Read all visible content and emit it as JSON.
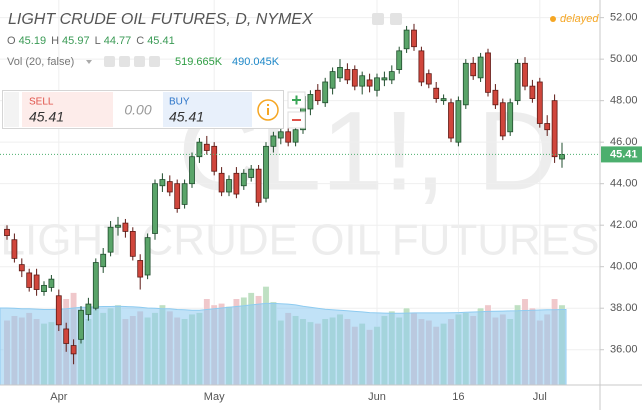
{
  "header": {
    "title": "LIGHT CRUDE OIL FUTURES, D, NYMEX",
    "status": "delayed",
    "ohlc_labels": [
      "O",
      "H",
      "L",
      "C"
    ],
    "volume_label": "Vol (20, false)"
  },
  "trade": {
    "sell_label": "SELL",
    "spread": "0.00",
    "buy_label": "BUY"
  },
  "chart_data": {
    "type": "candlestick",
    "watermark": [
      "CL1!, D",
      "LIGHT CRUDE OIL FUTURES"
    ],
    "categories": [
      null,
      null,
      null,
      null,
      null,
      null,
      null,
      "Apr",
      null,
      null,
      null,
      null,
      null,
      null,
      null,
      null,
      null,
      null,
      null,
      null,
      null,
      null,
      null,
      null,
      null,
      null,
      null,
      null,
      "May",
      null,
      null,
      null,
      null,
      null,
      null,
      null,
      null,
      null,
      null,
      null,
      null,
      null,
      null,
      null,
      null,
      null,
      null,
      null,
      null,
      null,
      "Jun",
      null,
      null,
      null,
      null,
      null,
      null,
      null,
      null,
      null,
      null,
      "16",
      null,
      null,
      null,
      null,
      null,
      null,
      null,
      null,
      null,
      null,
      "Jul",
      null,
      null,
      null
    ],
    "open": [
      41.8,
      41.3,
      40.1,
      39.7,
      39.6,
      38.8,
      39.0,
      38.6,
      37.0,
      36.2,
      36.5,
      37.7,
      38.0,
      40.0,
      40.7,
      41.9,
      42.1,
      41.7,
      40.3,
      39.6,
      41.6,
      43.9,
      44.1,
      44.0,
      43.0,
      44.0,
      45.3,
      45.9,
      45.8,
      44.5,
      43.6,
      44.5,
      43.9,
      44.3,
      44.7,
      43.3,
      45.8,
      46.2,
      46.5,
      46.0,
      46.6,
      47.6,
      48.5,
      47.9,
      48.6,
      49.1,
      49.5,
      49.5,
      48.7,
      49.0,
      48.5,
      49.0,
      49.0,
      49.5,
      50.5,
      51.4,
      50.4,
      49.3,
      48.6,
      48.0,
      47.9,
      46.0,
      47.8,
      49.8,
      49.1,
      50.3,
      48.5,
      47.9,
      46.5,
      48.0,
      49.8,
      48.7,
      48.9,
      46.9,
      48.0,
      45.19
    ],
    "high": [
      42.0,
      41.6,
      40.4,
      39.9,
      39.9,
      39.3,
      39.6,
      38.9,
      37.3,
      36.5,
      38.1,
      38.5,
      40.4,
      40.9,
      42.2,
      42.4,
      42.3,
      41.9,
      40.6,
      41.6,
      44.2,
      44.5,
      44.4,
      44.2,
      44.2,
      45.5,
      46.2,
      46.3,
      46.0,
      44.8,
      44.4,
      44.8,
      44.7,
      44.9,
      44.9,
      46.0,
      46.5,
      46.8,
      46.8,
      46.8,
      48.4,
      48.5,
      48.8,
      49.1,
      49.6,
      50.0,
      49.8,
      49.7,
      49.4,
      49.3,
      49.3,
      49.4,
      49.7,
      50.6,
      51.6,
      51.7,
      50.6,
      49.5,
      48.9,
      48.3,
      48.1,
      48.2,
      50.0,
      50.1,
      50.3,
      50.5,
      48.8,
      48.1,
      48.1,
      50.0,
      50.1,
      49.0,
      49.1,
      47.3,
      48.3,
      45.97
    ],
    "low": [
      41.3,
      40.2,
      39.5,
      38.8,
      38.6,
      38.6,
      38.8,
      36.9,
      35.9,
      35.3,
      36.3,
      37.4,
      37.9,
      39.7,
      40.5,
      41.5,
      41.4,
      40.3,
      38.9,
      39.4,
      41.3,
      43.6,
      43.4,
      42.6,
      42.8,
      43.8,
      45.0,
      45.4,
      44.4,
      43.4,
      43.4,
      43.3,
      43.7,
      44.1,
      42.9,
      43.1,
      45.5,
      45.9,
      45.8,
      45.8,
      46.4,
      47.3,
      47.8,
      47.7,
      48.3,
      48.9,
      48.8,
      48.5,
      48.3,
      48.4,
      48.2,
      48.7,
      48.8,
      49.3,
      50.3,
      50.4,
      48.7,
      48.6,
      47.9,
      47.8,
      46.0,
      45.8,
      47.6,
      49.0,
      48.9,
      48.2,
      47.6,
      46.1,
      46.3,
      47.8,
      48.5,
      47.9,
      46.7,
      46.3,
      45.0,
      44.77
    ],
    "close": [
      41.5,
      40.4,
      39.8,
      39.0,
      38.9,
      39.1,
      39.4,
      37.2,
      36.3,
      35.8,
      37.9,
      38.2,
      40.2,
      40.6,
      41.9,
      42.0,
      41.7,
      40.5,
      39.5,
      41.4,
      44.0,
      44.2,
      43.6,
      42.8,
      44.0,
      45.3,
      46.0,
      45.6,
      44.6,
      43.6,
      44.2,
      43.5,
      44.5,
      44.7,
      43.1,
      45.8,
      46.3,
      46.5,
      46.0,
      46.6,
      48.2,
      48.3,
      48.0,
      48.9,
      49.4,
      49.6,
      49.0,
      48.7,
      49.2,
      48.7,
      49.1,
      49.1,
      49.4,
      50.4,
      51.4,
      50.6,
      48.9,
      48.8,
      48.1,
      48.1,
      46.2,
      48.0,
      49.8,
      49.2,
      50.1,
      48.4,
      47.8,
      46.3,
      47.9,
      49.8,
      48.7,
      48.1,
      46.9,
      46.6,
      45.3,
      45.41
    ],
    "volume": [
      420000,
      450000,
      440000,
      470000,
      430000,
      400000,
      410000,
      520000,
      560000,
      600000,
      480000,
      430000,
      550000,
      470000,
      500000,
      520000,
      430000,
      450000,
      480000,
      440000,
      470000,
      520000,
      480000,
      440000,
      430000,
      460000,
      470000,
      560000,
      520000,
      530000,
      510000,
      560000,
      570000,
      600000,
      580000,
      640000,
      540000,
      420000,
      470000,
      450000,
      430000,
      410000,
      400000,
      430000,
      440000,
      460000,
      430000,
      380000,
      400000,
      360000,
      380000,
      450000,
      480000,
      440000,
      500000,
      470000,
      430000,
      420000,
      380000,
      400000,
      430000,
      460000,
      470000,
      450000,
      500000,
      520000,
      440000,
      460000,
      430000,
      520000,
      560000,
      500000,
      420000,
      460000,
      560000,
      519665
    ],
    "volume_ma": [
      500000,
      498000,
      495000,
      495000,
      493000,
      490000,
      490000,
      492000,
      495000,
      500000,
      505000,
      505000,
      508000,
      510000,
      510000,
      512000,
      510000,
      508000,
      505000,
      500000,
      498000,
      495000,
      495000,
      490000,
      488000,
      486000,
      485000,
      490000,
      495000,
      500000,
      505000,
      510000,
      515000,
      520000,
      525000,
      530000,
      530000,
      528000,
      525000,
      520000,
      512000,
      505000,
      498000,
      492000,
      488000,
      485000,
      482000,
      478000,
      475000,
      470000,
      468000,
      467000,
      466000,
      466000,
      467000,
      468000,
      468000,
      468000,
      468000,
      468000,
      469000,
      470000,
      472000,
      474000,
      476000,
      478000,
      479000,
      480000,
      481000,
      482000,
      484000,
      486000,
      487000,
      488000,
      489000,
      490045
    ],
    "volume_value_label": "519.665K",
    "volume_ma_value_label": "490.045K",
    "volume_ylim": [
      0,
      2500000
    ],
    "ylim": [
      34.3,
      52.85
    ],
    "yticks": [
      {
        "value": 36,
        "label": "36.00"
      },
      {
        "value": 38,
        "label": "38.00"
      },
      {
        "value": 40,
        "label": "40.00"
      },
      {
        "value": 42,
        "label": "42.00"
      },
      {
        "value": 44,
        "label": "44.00"
      },
      {
        "value": 46,
        "label": "46.00"
      },
      {
        "value": 48,
        "label": "48.00"
      },
      {
        "value": 50,
        "label": "50.00"
      },
      {
        "value": 52,
        "label": "52.00"
      }
    ],
    "grid": true,
    "up_color": "#5aa469",
    "up_border": "#1f4d2c",
    "down_color": "#d0463c",
    "down_border": "#5e1a15",
    "volume_up_color": "#bfe0c3",
    "volume_down_color": "#f0c8cb",
    "volume_ma_color": "#8ecbf0",
    "last_price_color": "#4caf6e"
  }
}
